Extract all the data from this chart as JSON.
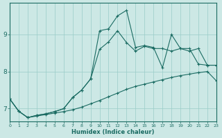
{
  "xlabel": "Humidex (Indice chaleur)",
  "bg_color": "#cce8e5",
  "grid_color": "#99ccc8",
  "line_color": "#1a6b62",
  "xlim": [
    0,
    23
  ],
  "ylim": [
    6.65,
    9.85
  ],
  "xticks": [
    0,
    1,
    2,
    3,
    4,
    5,
    6,
    7,
    8,
    9,
    10,
    11,
    12,
    13,
    14,
    15,
    16,
    17,
    18,
    19,
    20,
    21,
    22,
    23
  ],
  "yticks": [
    7,
    8,
    9
  ],
  "line1_x": [
    0,
    1,
    2,
    3,
    4,
    5,
    6,
    7,
    8,
    9,
    10,
    11,
    12,
    13,
    14,
    15,
    16,
    17,
    18,
    19,
    20,
    21,
    22,
    23
  ],
  "line1_y": [
    7.26,
    6.93,
    6.76,
    6.8,
    6.84,
    6.88,
    6.92,
    6.97,
    7.04,
    7.13,
    7.22,
    7.32,
    7.42,
    7.52,
    7.6,
    7.66,
    7.72,
    7.78,
    7.84,
    7.89,
    7.93,
    7.97,
    8.0,
    7.75
  ],
  "line2_x": [
    0,
    1,
    2,
    3,
    4,
    5,
    6,
    7,
    8,
    9,
    10,
    11,
    12,
    13,
    14,
    15,
    16,
    17,
    18,
    19,
    20,
    21,
    22,
    23
  ],
  "line2_y": [
    7.26,
    6.93,
    6.76,
    6.82,
    6.86,
    6.92,
    7.0,
    7.3,
    7.5,
    7.8,
    8.6,
    8.8,
    9.1,
    8.78,
    8.55,
    8.68,
    8.62,
    8.62,
    8.55,
    8.62,
    8.62,
    8.2,
    8.17,
    8.17
  ],
  "line3_x": [
    0,
    1,
    2,
    3,
    4,
    5,
    6,
    7,
    8,
    9,
    10,
    11,
    12,
    13,
    14,
    15,
    16,
    17,
    18,
    19,
    20,
    21,
    22,
    23
  ],
  "line3_y": [
    7.26,
    6.93,
    6.76,
    6.82,
    6.86,
    6.92,
    7.0,
    7.3,
    7.5,
    7.8,
    9.1,
    9.15,
    9.5,
    9.65,
    8.65,
    8.7,
    8.65,
    8.1,
    9.0,
    8.62,
    8.55,
    8.62,
    8.17,
    8.17
  ]
}
